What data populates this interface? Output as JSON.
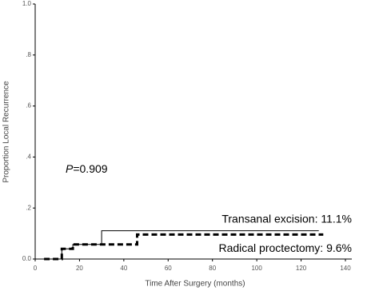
{
  "chart_data": {
    "type": "line",
    "step": true,
    "xlabel": "Time After Surgery (months)",
    "ylabel": "Proportion Local Recurrence",
    "xlim": [
      0,
      140
    ],
    "xticks": [
      0,
      20,
      40,
      60,
      80,
      100,
      120,
      140
    ],
    "ylim": [
      0,
      1
    ],
    "yticks": [
      {
        "value": 0,
        "label": "0.0"
      },
      {
        "value": 0.2,
        "label": ".2"
      },
      {
        "value": 0.4,
        "label": ".4"
      },
      {
        "value": 0.6,
        "label": ".6"
      },
      {
        "value": 0.8,
        "label": ".8"
      },
      {
        "value": 1,
        "label": "1.0"
      }
    ],
    "series": [
      {
        "name": "Transanal excision: 11.1%",
        "color": "#000000",
        "style": "solid",
        "x": [
          0,
          12,
          12,
          17,
          17,
          30,
          30,
          128
        ],
        "values": [
          0,
          0,
          0.04,
          0.04,
          0.057,
          0.057,
          0.111,
          0.111
        ]
      },
      {
        "name": "Radical proctectomy: 9.6%",
        "color": "#000000",
        "style": "dashed",
        "x": [
          4,
          12,
          12,
          17,
          17,
          46,
          46,
          130
        ],
        "values": [
          0,
          0,
          0.04,
          0.04,
          0.057,
          0.057,
          0.096,
          0.096
        ]
      }
    ],
    "annotation": {
      "italic": "P",
      "text": "=0.909"
    }
  }
}
